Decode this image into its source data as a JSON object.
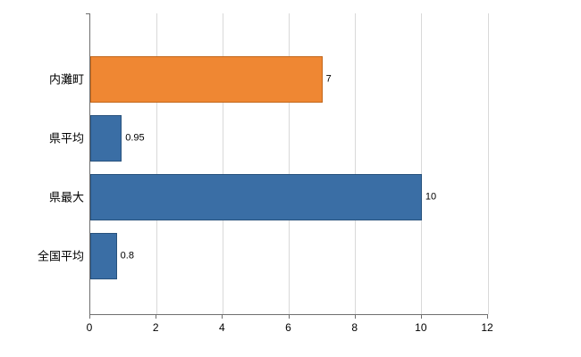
{
  "chart_data": {
    "type": "bar",
    "orientation": "horizontal",
    "title": "",
    "categories": [
      "内灘町",
      "県平均",
      "県最大",
      "全国平均"
    ],
    "values": [
      7,
      0.95,
      10,
      0.8
    ],
    "value_labels": [
      "7",
      "0.95",
      "10",
      "0.8"
    ],
    "series_colors": [
      "#ef8733",
      "#3a6ea5",
      "#3a6ea5",
      "#3a6ea5"
    ],
    "bar_border_colors": [
      "#c2661a",
      "#28527d",
      "#28527d",
      "#28527d"
    ],
    "xlim": [
      0,
      12
    ],
    "xticks": [
      "0",
      "2",
      "4",
      "6",
      "8",
      "10",
      "12"
    ],
    "grid": "on",
    "legend": "none",
    "background_color": "#ffffff",
    "gridline_color": "#d9d9d9",
    "axis_color": "#6f6f6f",
    "text_color": "#000000"
  }
}
